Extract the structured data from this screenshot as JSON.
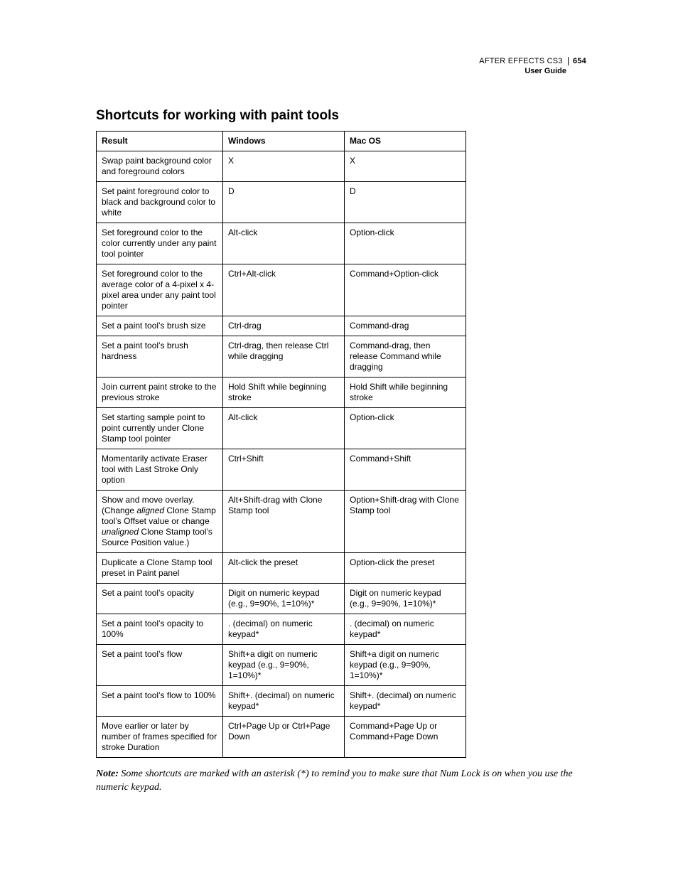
{
  "header": {
    "product": "AFTER EFFECTS CS3",
    "page_number": "654",
    "subtitle": "User Guide"
  },
  "section_title": "Shortcuts for working with paint tools",
  "table": {
    "columns": [
      "Result",
      "Windows",
      "Mac OS"
    ],
    "rows": [
      {
        "result": "Swap paint background color and foreground colors",
        "windows": "X",
        "macos": "X"
      },
      {
        "result": "Set paint foreground color to black and background color to white",
        "windows": "D",
        "macos": "D"
      },
      {
        "result": "Set foreground color to the color currently under any paint tool pointer",
        "windows": "Alt-click",
        "macos": "Option-click"
      },
      {
        "result": "Set foreground color to the average color of a 4-pixel x 4-pixel area under any paint tool pointer",
        "windows": "Ctrl+Alt-click",
        "macos": "Command+Option-click"
      },
      {
        "result": "Set a paint tool’s brush size",
        "windows": "Ctrl-drag",
        "macos": "Command-drag"
      },
      {
        "result": "Set a paint tool’s brush hardness",
        "windows": "Ctrl-drag, then release Ctrl while dragging",
        "macos": "Command-drag, then release Command while dragging"
      },
      {
        "result": "Join current paint stroke to the previous stroke",
        "windows": "Hold Shift while beginning stroke",
        "macos": "Hold Shift while beginning stroke"
      },
      {
        "result": "Set starting sample point to point currently under Clone Stamp tool pointer",
        "windows": "Alt-click",
        "macos": "Option-click"
      },
      {
        "result": "Momentarily activate Eraser tool with Last Stroke Only option",
        "windows": "Ctrl+Shift",
        "macos": "Command+Shift"
      },
      {
        "result_html": "Show and move overlay. (Change <em class=\"it\">aligned</em> Clone Stamp tool’s Offset value or change <em class=\"it\">unaligned</em> Clone Stamp tool’s Source Position value.)",
        "windows": "Alt+Shift-drag with Clone Stamp tool",
        "macos": "Option+Shift-drag with Clone Stamp tool"
      },
      {
        "result": "Duplicate a Clone Stamp tool preset in Paint panel",
        "windows": "Alt-click the preset",
        "macos": "Option-click the preset"
      },
      {
        "result": "Set a paint tool’s opacity",
        "windows": "Digit on numeric keypad (e.g., 9=90%, 1=10%)*",
        "macos": "Digit on numeric keypad (e.g., 9=90%, 1=10%)*"
      },
      {
        "result": "Set a paint tool’s opacity to 100%",
        "windows": ". (decimal) on numeric keypad*",
        "macos": ". (decimal) on numeric keypad*"
      },
      {
        "result": "Set a paint tool’s flow",
        "windows": "Shift+a digit on numeric keypad (e.g., 9=90%, 1=10%)*",
        "macos": "Shift+a digit on numeric keypad (e.g., 9=90%, 1=10%)*"
      },
      {
        "result": "Set a paint tool’s flow to 100%",
        "windows": "Shift+. (decimal) on numeric keypad*",
        "macos": "Shift+. (decimal) on numeric keypad*"
      },
      {
        "result": "Move earlier or later by number of frames specified for stroke Duration",
        "windows": "Ctrl+Page Up or Ctrl+Page Down",
        "macos": "Command+Page Up or Command+Page Down"
      }
    ]
  },
  "note": {
    "label": "Note:",
    "text": "Some shortcuts are marked with an asterisk (*) to remind you to make sure that Num Lock is on when you use the numeric keypad."
  }
}
